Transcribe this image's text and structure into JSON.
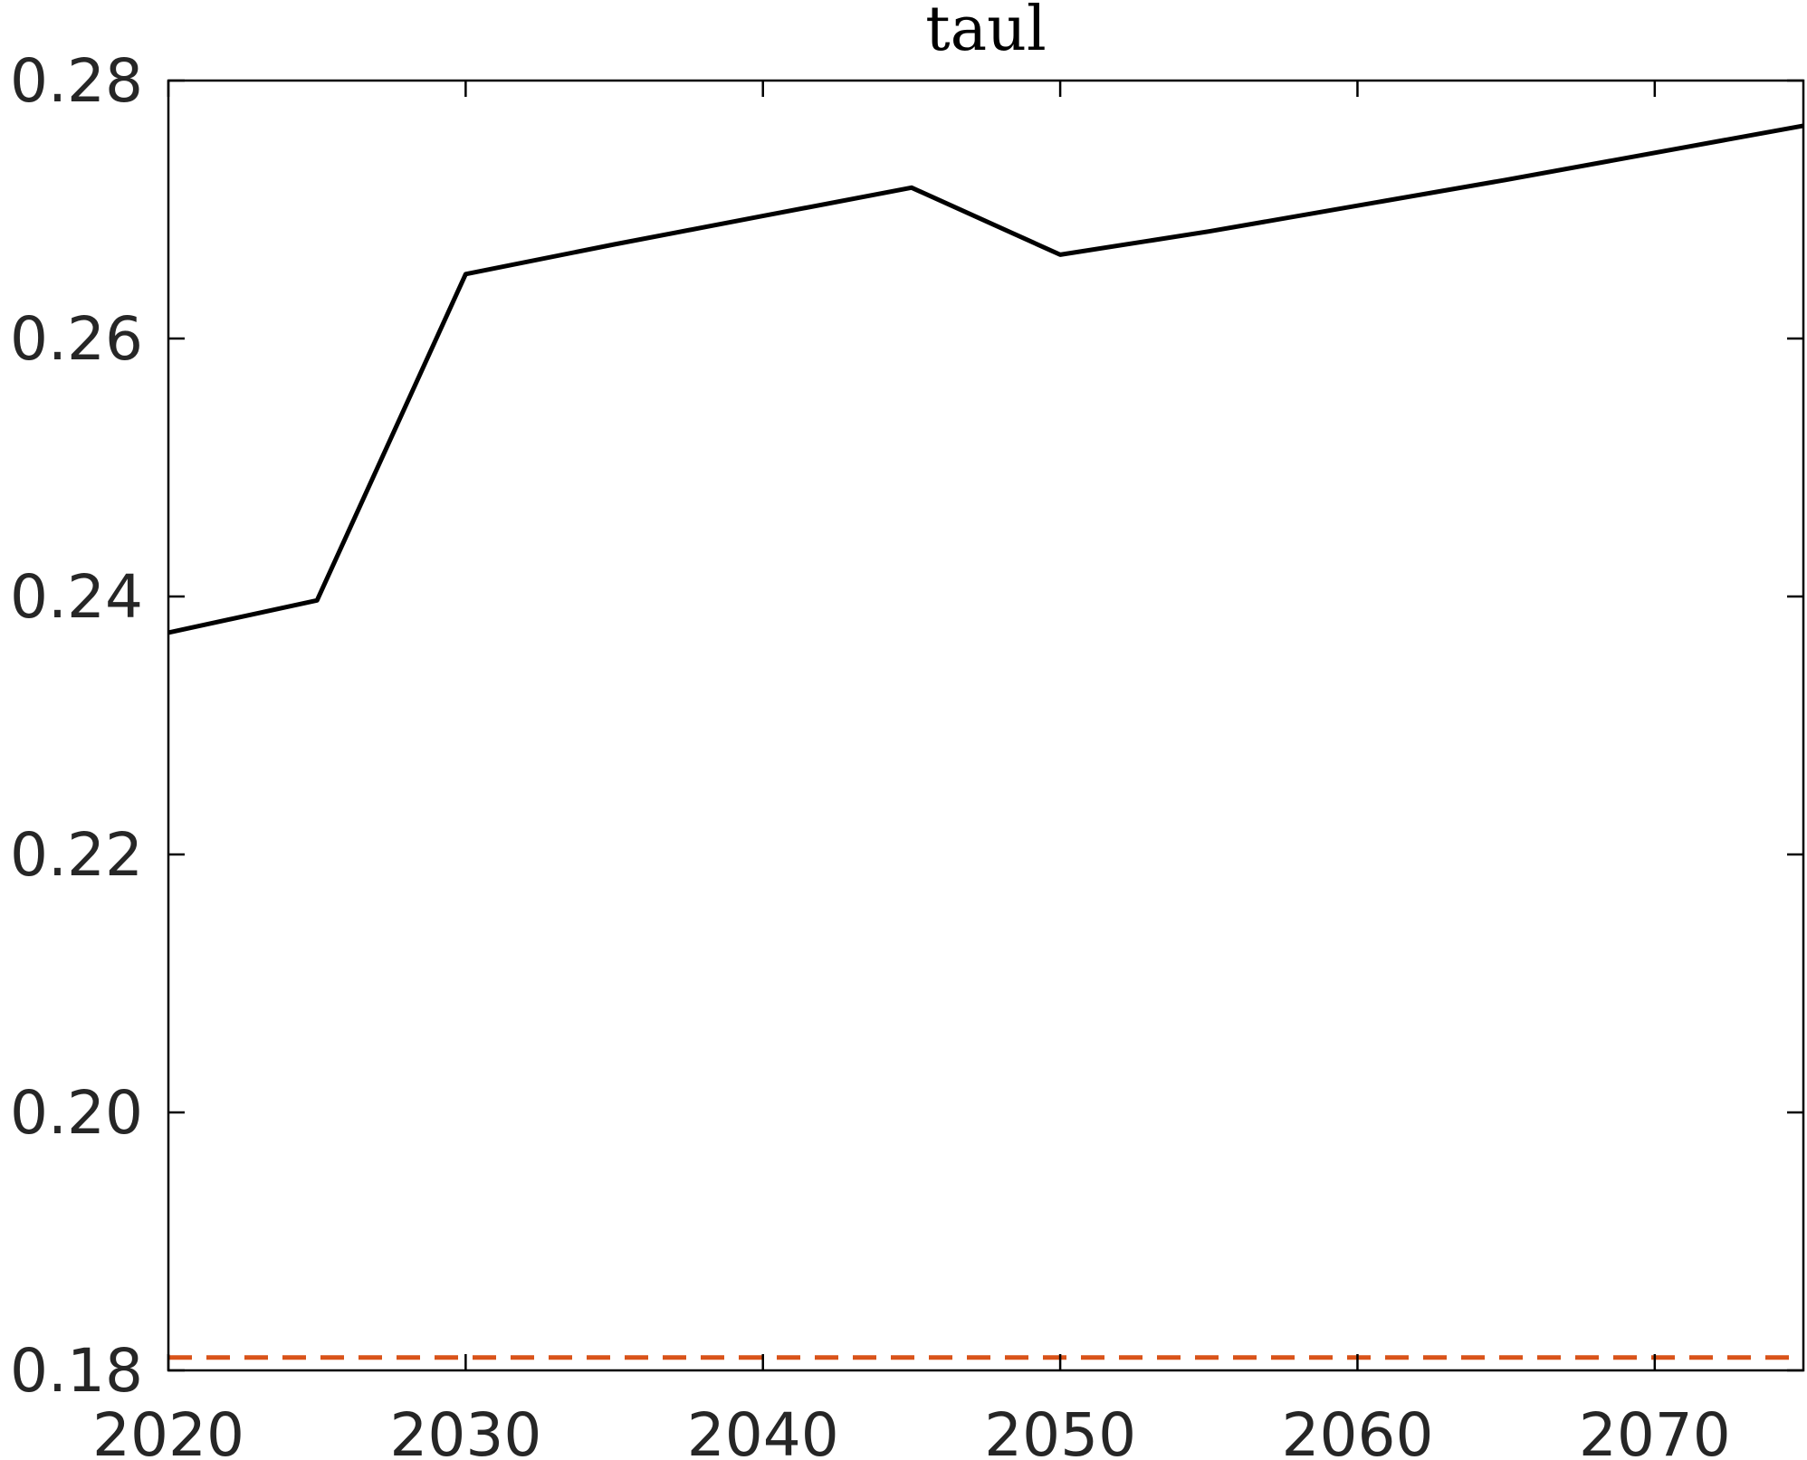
{
  "chart_data": {
    "type": "line",
    "title": "taul",
    "xlabel": "",
    "ylabel": "",
    "xlim": [
      2020,
      2075
    ],
    "ylim": [
      0.18,
      0.28
    ],
    "xticks": [
      2020,
      2030,
      2040,
      2050,
      2060,
      2070
    ],
    "xtick_labels": [
      "2020",
      "2030",
      "2040",
      "2050",
      "2060",
      "2070"
    ],
    "yticks": [
      0.18,
      0.2,
      0.22,
      0.24,
      0.26,
      0.28
    ],
    "ytick_labels": [
      "0.18",
      "0.20",
      "0.22",
      "0.24",
      "0.26",
      "0.28"
    ],
    "grid": false,
    "legend": "none",
    "series": [
      {
        "x": [
          2020,
          2025,
          2030,
          2035,
          2040,
          2045,
          2050,
          2055,
          2060,
          2065,
          2070,
          2075
        ],
        "values": [
          0.2372,
          0.2397,
          0.265,
          0.2673,
          0.2695,
          0.2717,
          0.2665,
          0.2683,
          0.2703,
          0.2723,
          0.2744,
          0.2765
        ],
        "color": "#000000",
        "style": "solid"
      },
      {
        "x": [
          2020,
          2075
        ],
        "values": [
          0.181,
          0.181
        ],
        "color": "#D95319",
        "style": "dashed"
      }
    ]
  }
}
